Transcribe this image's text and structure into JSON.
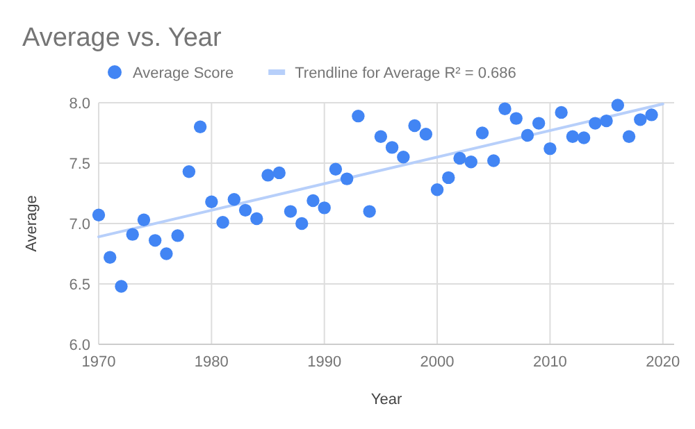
{
  "chart_data": {
    "type": "scatter",
    "title": "Average vs. Year",
    "xlabel": "Year",
    "ylabel": "Average",
    "xlim": [
      1970,
      2021
    ],
    "xticks": [
      1970,
      1980,
      1990,
      2000,
      2010,
      2020
    ],
    "ylim": [
      6.0,
      8.0
    ],
    "yticks": [
      {
        "value": 6.0,
        "label": "6.0"
      },
      {
        "value": 6.5,
        "label": "6.5"
      },
      {
        "value": 7.0,
        "label": "7.0"
      },
      {
        "value": 7.5,
        "label": "7.5"
      },
      {
        "value": 8.0,
        "label": "8.0"
      }
    ],
    "grid": true,
    "legend": "top",
    "marker": "circle",
    "series": [
      {
        "name": "Average Score",
        "color": "#4285f4",
        "x": [
          1970,
          1971,
          1972,
          1973,
          1974,
          1975,
          1976,
          1977,
          1978,
          1979,
          1980,
          1981,
          1982,
          1983,
          1984,
          1985,
          1986,
          1987,
          1988,
          1989,
          1990,
          1991,
          1992,
          1993,
          1994,
          1995,
          1996,
          1997,
          1998,
          1999,
          2000,
          2001,
          2002,
          2003,
          2004,
          2005,
          2006,
          2007,
          2008,
          2009,
          2010,
          2011,
          2012,
          2013,
          2014,
          2015,
          2016,
          2017,
          2018,
          2019
        ],
        "values": [
          7.07,
          6.72,
          6.48,
          6.91,
          7.03,
          6.86,
          6.75,
          6.9,
          7.43,
          7.8,
          7.18,
          7.01,
          7.2,
          7.11,
          7.04,
          7.4,
          7.42,
          7.1,
          7.0,
          7.19,
          7.13,
          7.45,
          7.37,
          7.89,
          7.1,
          7.72,
          7.63,
          7.55,
          7.81,
          7.74,
          7.28,
          7.38,
          7.54,
          7.51,
          7.75,
          7.52,
          7.95,
          7.87,
          7.73,
          7.83,
          7.62,
          7.92,
          7.72,
          7.71,
          7.83,
          7.85,
          7.98,
          7.72,
          7.86,
          7.9
        ]
      },
      {
        "name": "Trendline for Average R² = 0.686",
        "type": "line",
        "marker": "none",
        "color": "#b7cffa",
        "x": [
          1970,
          2020
        ],
        "values": [
          6.89,
          7.99
        ]
      }
    ]
  }
}
